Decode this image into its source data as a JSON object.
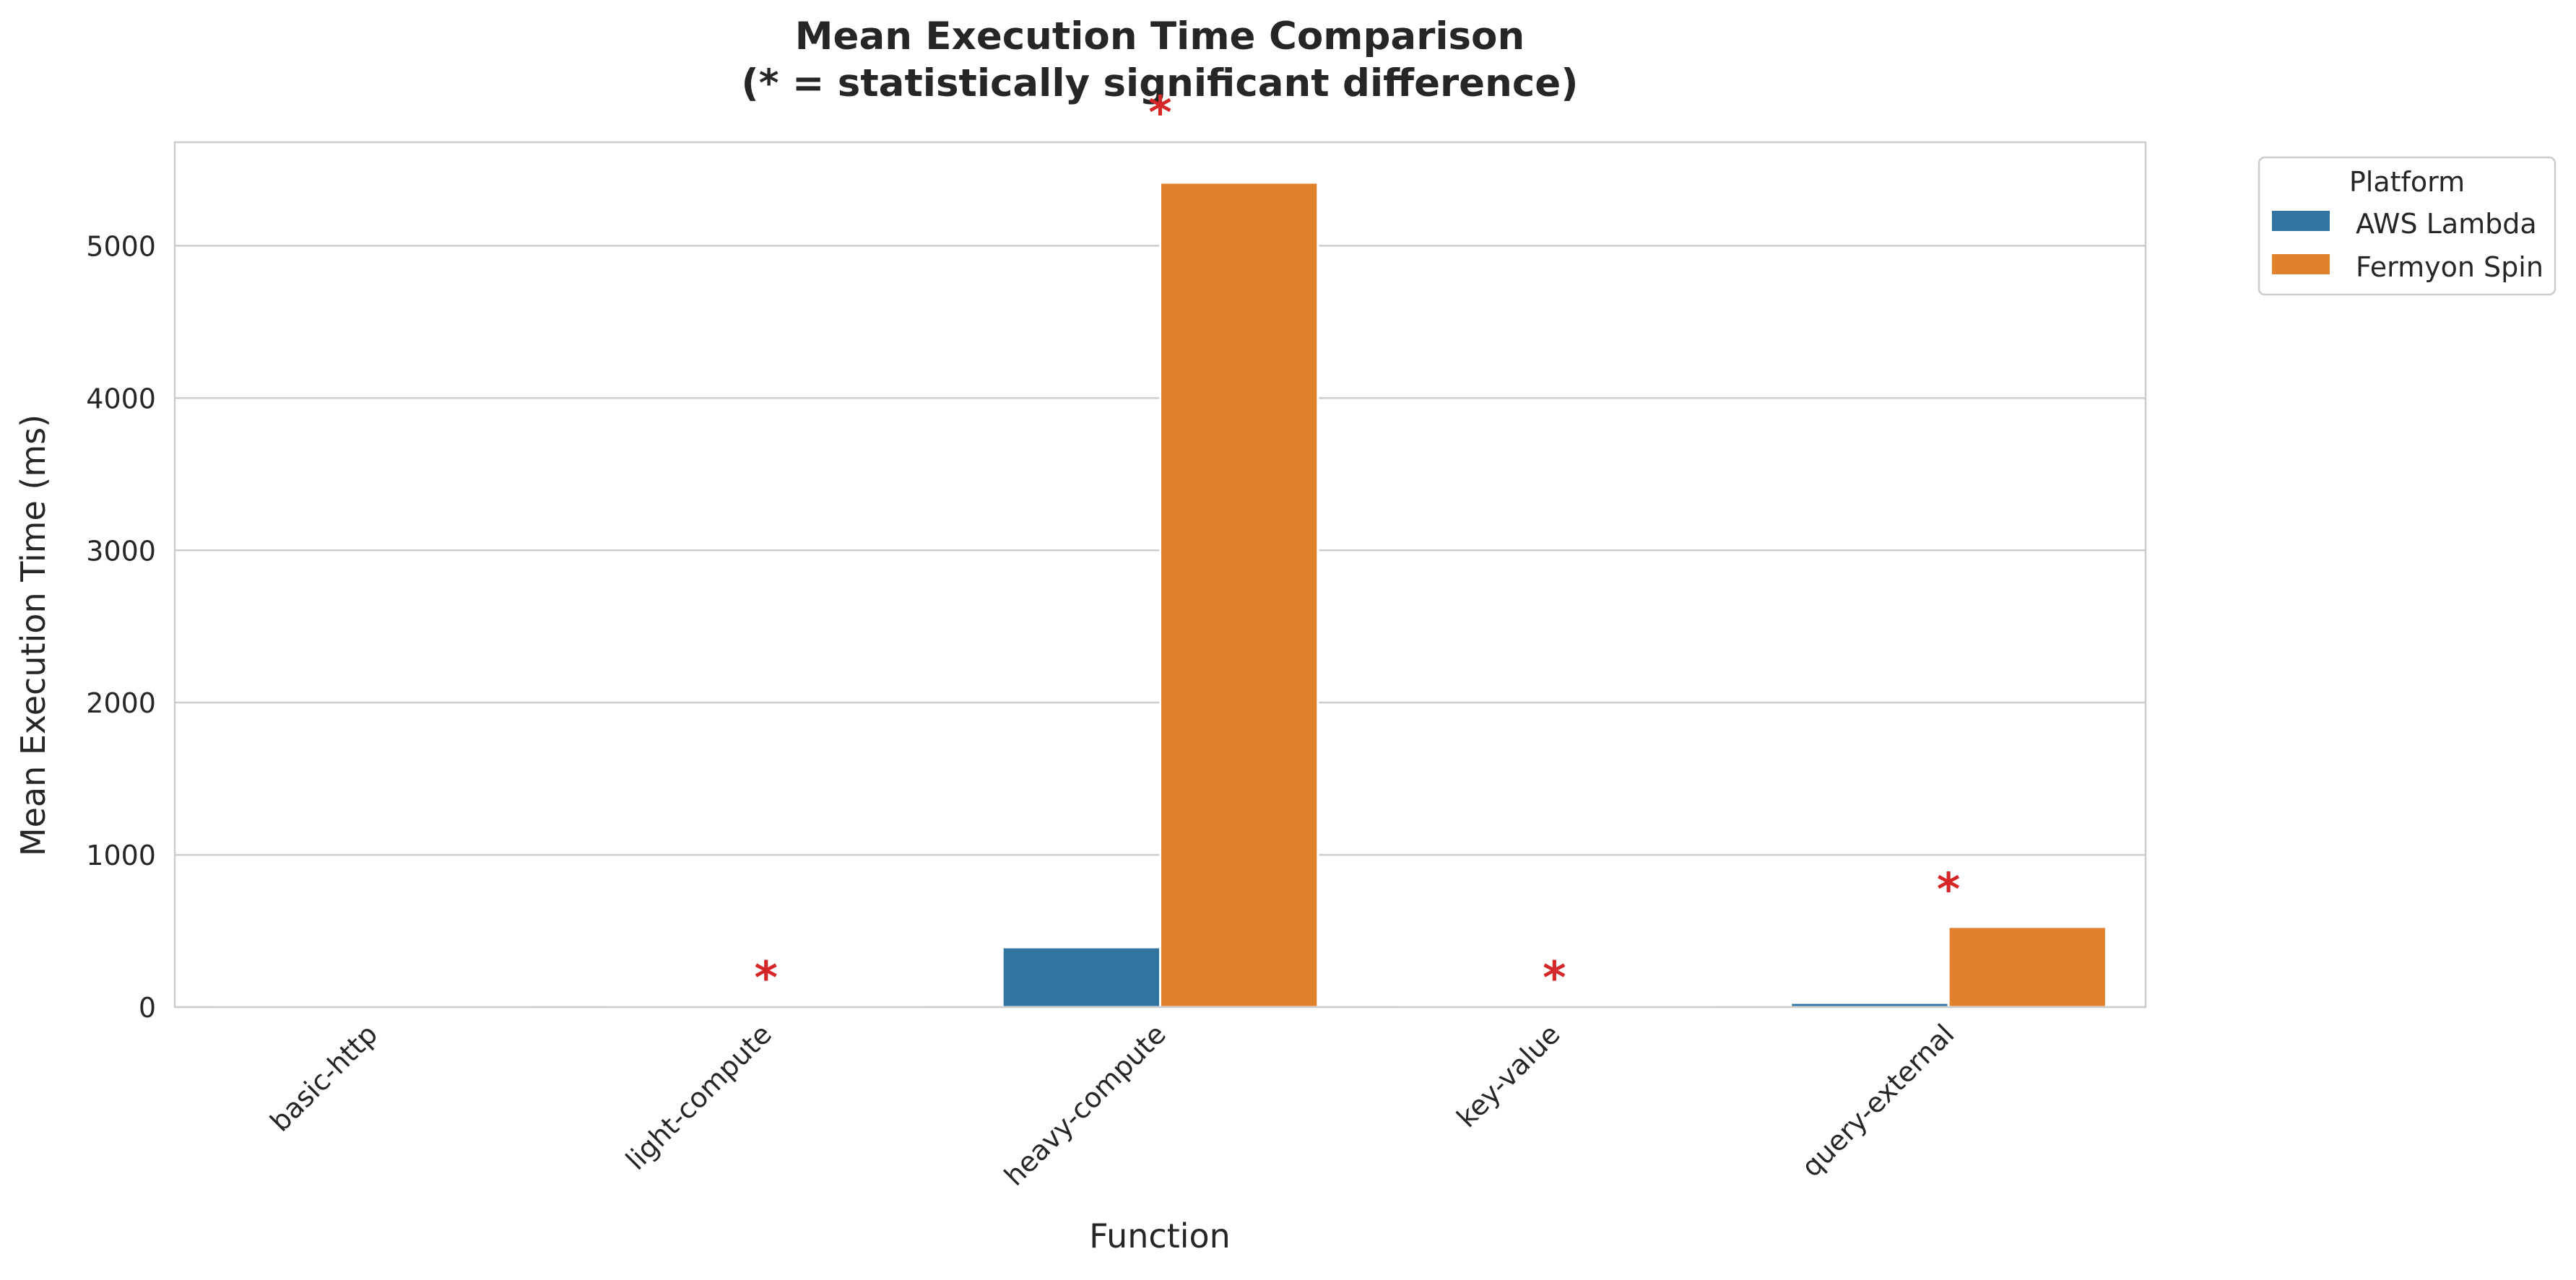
{
  "chart_data": {
    "type": "bar",
    "title_line1": "Mean Execution Time Comparison",
    "title_line2": "(* = statistically significant difference)",
    "xlabel": "Function",
    "ylabel": "Mean Execution Time (ms)",
    "categories": [
      "basic-http",
      "light-compute",
      "heavy-compute",
      "key-value",
      "query-external"
    ],
    "series": [
      {
        "name": "AWS Lambda",
        "color": "#3274a1",
        "values": [
          3,
          4,
          393,
          5,
          28
        ]
      },
      {
        "name": "Fermyon Spin",
        "color": "#e1812c",
        "values": [
          2,
          2,
          5415,
          3,
          527
        ]
      }
    ],
    "yticks": [
      0,
      1000,
      2000,
      3000,
      4000,
      5000
    ],
    "ylim": [
      0,
      5680
    ],
    "grid": true,
    "legend": {
      "title": "Platform",
      "placement": "outside-top-right"
    },
    "significance": {
      "marker": "*",
      "color": "#d62728",
      "markers": [
        {
          "category": "light-compute",
          "y": 233
        },
        {
          "category": "heavy-compute",
          "y": 5915
        },
        {
          "category": "key-value",
          "y": 233
        },
        {
          "category": "query-external",
          "y": 813
        }
      ]
    }
  }
}
